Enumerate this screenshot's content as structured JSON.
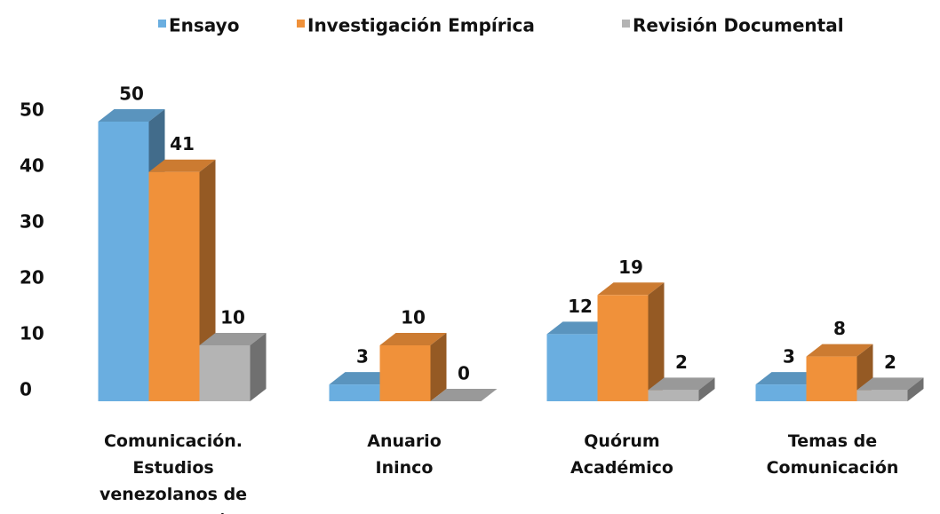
{
  "chart_data": {
    "type": "bar3d",
    "categories": [
      "Comunicación. Estudios venezolanos de comunicación",
      "Anuario Ininco",
      "Quórum Académico",
      "Temas de Comunicación"
    ],
    "series": [
      {
        "name": "Ensayo",
        "color": "#6aaee0",
        "values": [
          50,
          3,
          12,
          3
        ]
      },
      {
        "name": "Investigación Empírica",
        "color": "#f0913a",
        "values": [
          41,
          10,
          19,
          8
        ]
      },
      {
        "name": "Revisión Documental",
        "color": "#b4b4b4",
        "values": [
          10,
          0,
          2,
          2
        ]
      }
    ],
    "ylim": [
      0,
      50
    ],
    "yticks": [
      0,
      10,
      20,
      30,
      40,
      50
    ],
    "legend": "top"
  }
}
